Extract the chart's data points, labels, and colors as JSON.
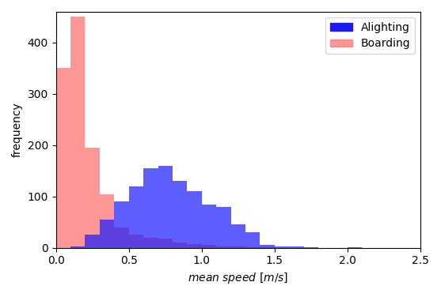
{
  "title": "",
  "xlabel": "mean speed $[m/s]$",
  "ylabel": "frequency",
  "xlim": [
    0,
    2.5
  ],
  "ylim_max": 460,
  "bin_width": 0.1,
  "alighting_color": "#1a1aff",
  "boarding_color": "#ff6b6b",
  "alighting_alpha": 0.7,
  "boarding_alpha": 0.7,
  "alighting_label": "Alighting",
  "boarding_label": "Boarding",
  "bin_edges": [
    0.0,
    0.1,
    0.2,
    0.3,
    0.4,
    0.5,
    0.6,
    0.7,
    0.8,
    0.9,
    1.0,
    1.1,
    1.2,
    1.3,
    1.4,
    1.5,
    1.6,
    1.7,
    1.8,
    1.9,
    2.0,
    2.1,
    2.2,
    2.3,
    2.4,
    2.5
  ],
  "alighting_counts": [
    0,
    3,
    25,
    55,
    90,
    120,
    155,
    160,
    130,
    110,
    85,
    80,
    45,
    30,
    5,
    3,
    2,
    1,
    0,
    0,
    1,
    0,
    0,
    0,
    0
  ],
  "boarding_counts": [
    350,
    450,
    195,
    105,
    40,
    25,
    20,
    18,
    10,
    8,
    5,
    3,
    2,
    1,
    1,
    0,
    0,
    0,
    0,
    0,
    0,
    0,
    0,
    0,
    0
  ],
  "yticks": [
    0,
    100,
    200,
    300,
    400
  ],
  "xticks": [
    0.0,
    0.5,
    1.0,
    1.5,
    2.0,
    2.5
  ],
  "figsize": [
    5.57,
    3.76
  ],
  "dpi": 100
}
